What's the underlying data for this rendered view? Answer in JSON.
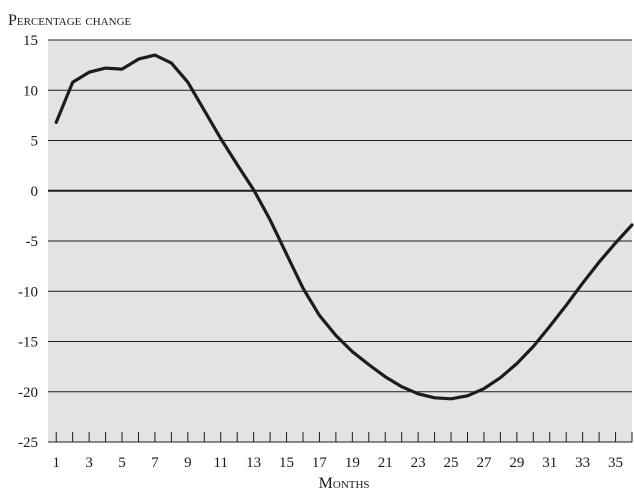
{
  "chart_data": {
    "type": "line",
    "ylabel": "Percentage change",
    "xlabel": "Months",
    "ylim": [
      -25,
      15
    ],
    "yticks": [
      15,
      10,
      5,
      0,
      -5,
      -10,
      -15,
      -20,
      -25
    ],
    "xlim": [
      0.5,
      36
    ],
    "xticks": [
      1,
      3,
      5,
      7,
      9,
      11,
      13,
      15,
      17,
      19,
      21,
      23,
      25,
      27,
      29,
      31,
      33,
      35
    ],
    "grid": "horizontal",
    "series": [
      {
        "x": [
          1,
          2,
          3,
          4,
          5,
          6,
          7,
          8,
          9,
          10,
          11,
          12,
          13,
          14,
          15,
          16,
          17,
          18,
          19,
          20,
          21,
          22,
          23,
          24,
          25,
          26,
          27,
          28,
          29,
          30,
          31,
          32,
          33,
          34,
          35,
          36
        ],
        "values": [
          6.8,
          10.8,
          11.8,
          12.2,
          12.1,
          13.1,
          13.5,
          12.7,
          10.8,
          8.0,
          5.2,
          2.6,
          0.1,
          -2.9,
          -6.3,
          -9.7,
          -12.4,
          -14.4,
          -16.0,
          -17.3,
          -18.5,
          -19.5,
          -20.2,
          -20.6,
          -20.7,
          -20.4,
          -19.7,
          -18.6,
          -17.2,
          -15.5,
          -13.5,
          -11.4,
          -9.2,
          -7.1,
          -5.2,
          -3.4
        ]
      }
    ],
    "colors": {
      "plot_background": "#e3e3e3",
      "line": "#1c1c1c",
      "grid": "#1c1c1c"
    }
  }
}
